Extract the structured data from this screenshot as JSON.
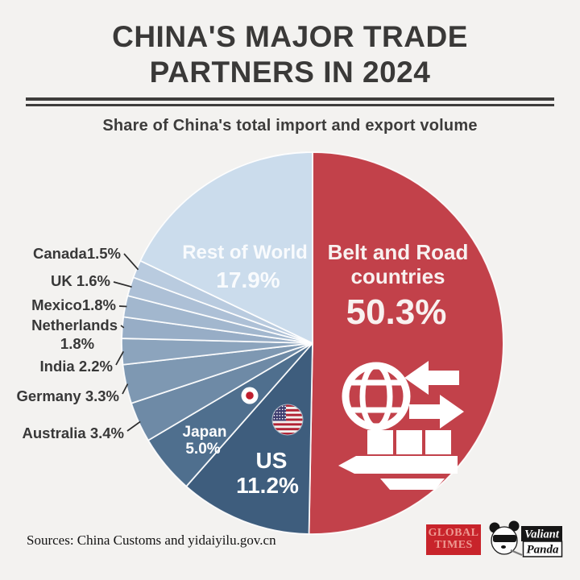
{
  "header": {
    "title_line1": "CHINA'S MAJOR TRADE",
    "title_line2": "PARTNERS IN 2024",
    "subtitle": "Share of China's total import and export volume"
  },
  "chart_data": {
    "type": "pie",
    "title": "China's major trade partners in 2024",
    "subtitle": "Share of China's total import and export volume",
    "unit": "%",
    "direction": "clockwise",
    "start_angle_deg": 0,
    "legend_position": "none",
    "slices": [
      {
        "label": "Belt and Road countries",
        "value": 50.3,
        "color": "#c2414a",
        "label_style": "inside"
      },
      {
        "label": "US",
        "value": 11.2,
        "color": "#3e5d7d",
        "label_style": "inside",
        "flag": "us"
      },
      {
        "label": "Japan",
        "value": 5.0,
        "color": "#4f6f8e",
        "label_style": "inside",
        "flag": "japan"
      },
      {
        "label": "Australia",
        "value": 3.4,
        "color": "#6e8aa6",
        "label_style": "callout",
        "callout_text": "Australia 3.4%"
      },
      {
        "label": "Germany",
        "value": 3.3,
        "color": "#7e98b2",
        "label_style": "callout",
        "callout_text": "Germany 3.3%"
      },
      {
        "label": "India",
        "value": 2.2,
        "color": "#8ca4bd",
        "label_style": "callout",
        "callout_text": "India 2.2%"
      },
      {
        "label": "Netherlands",
        "value": 1.8,
        "color": "#97adc6",
        "label_style": "callout",
        "callout_text": "Netherlands",
        "callout_text2": "1.8%"
      },
      {
        "label": "Mexico",
        "value": 1.8,
        "color": "#a2b7ce",
        "label_style": "callout",
        "callout_text": "Mexico1.8%"
      },
      {
        "label": "UK",
        "value": 1.6,
        "color": "#adc0d6",
        "label_style": "callout",
        "callout_text": "UK 1.6%"
      },
      {
        "label": "Canada",
        "value": 1.5,
        "color": "#b9cbdf",
        "label_style": "callout",
        "callout_text": "Canada1.5%"
      },
      {
        "label": "Rest of World",
        "value": 17.9,
        "color": "#cbdcec",
        "label_style": "inside"
      }
    ]
  },
  "footer": {
    "sources": "Sources: China Customs and yidaiyilu.gov.cn"
  },
  "logos": {
    "global_times": {
      "line1": "GLOBAL",
      "line2": "TIMES",
      "bg_color": "#c8242b",
      "text_color": "#ee9a92"
    },
    "valiant_panda": {
      "word1": "Valiant",
      "word2": "Panda"
    }
  }
}
